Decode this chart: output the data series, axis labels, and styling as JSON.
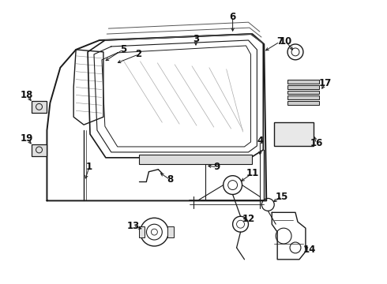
{
  "background_color": "#ffffff",
  "line_color": "#1a1a1a",
  "label_color": "#111111",
  "fig_width": 4.9,
  "fig_height": 3.6,
  "dpi": 100
}
